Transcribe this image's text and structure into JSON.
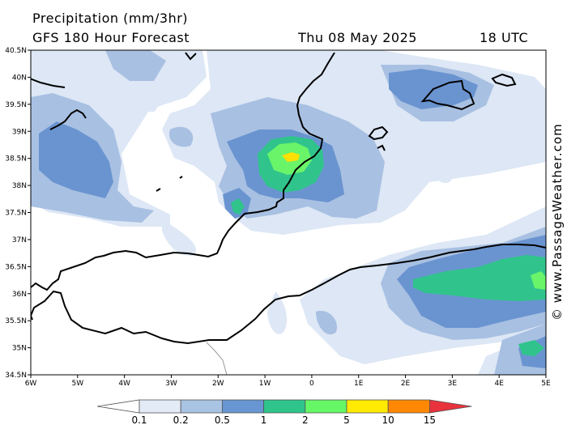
{
  "header": {
    "line1": "Precipitation (mm/3hr)",
    "line2": "GFS 180 Hour Forecast",
    "date": "Thu 08 May 2025",
    "time": "18 UTC"
  },
  "credit": "© www.PassageWeather.com",
  "axes": {
    "latitudes": [
      "40.5N",
      "40N",
      "39.5N",
      "39N",
      "38.5N",
      "38N",
      "37.5N",
      "37N",
      "36.5N",
      "36N",
      "35.5N",
      "35N",
      "34.5N"
    ],
    "longitudes": [
      "6W",
      "5W",
      "4W",
      "3W",
      "2W",
      "1W",
      "0",
      "1E",
      "2E",
      "3E",
      "4E",
      "5E"
    ]
  },
  "legend": {
    "labels": [
      "0.1",
      "0.2",
      "0.5",
      "1",
      "2",
      "5",
      "10",
      "15"
    ],
    "colors": [
      "#e3ebf7",
      "#a9c3e3",
      "#6896d2",
      "#2ec48a",
      "#66f766",
      "#ffea00",
      "#ff8800",
      "#e8323c"
    ]
  },
  "palette": {
    "level1": "#dde7f5",
    "level2": "#a8c0e2",
    "level3": "#6a94d0",
    "level4": "#30c48c",
    "level5": "#6af46a",
    "level6": "#ffe000"
  }
}
